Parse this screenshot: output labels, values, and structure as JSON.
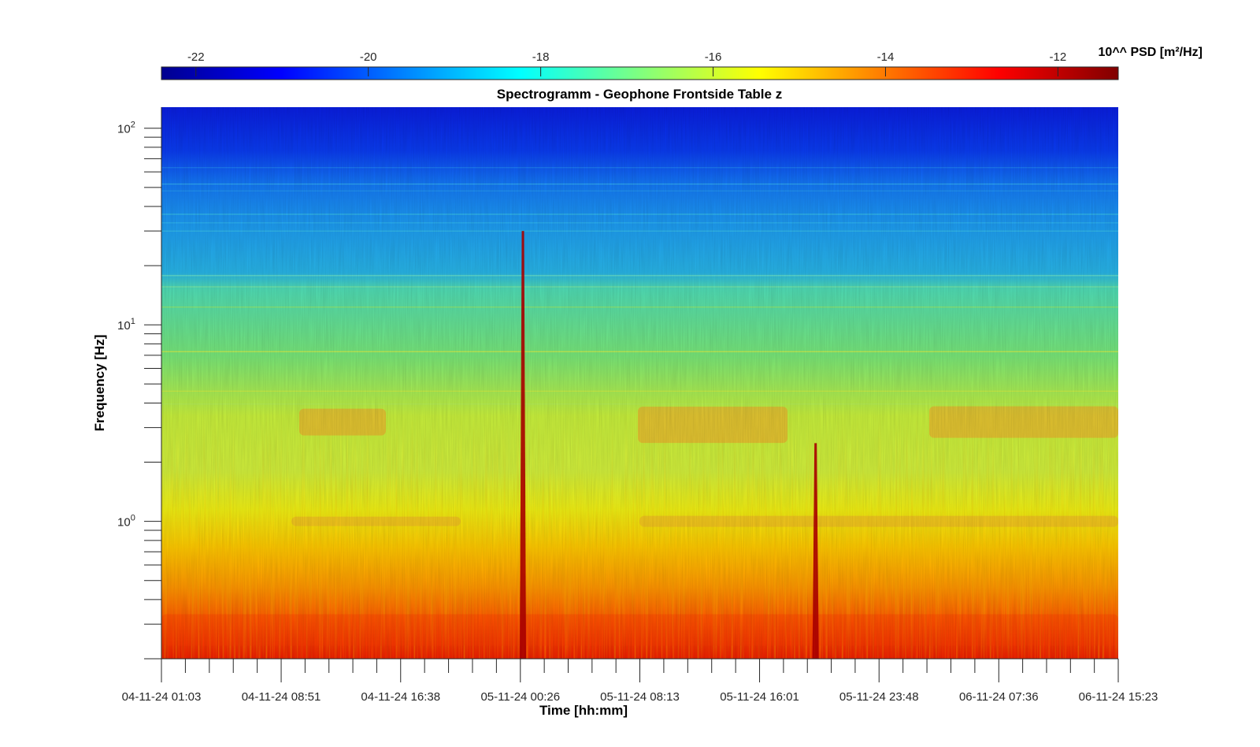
{
  "chart_data": {
    "type": "heatmap",
    "title": "Spectrogramm - Geophone Frontside Table z",
    "xlabel": "Time [hh:mm]",
    "ylabel": "Frequency [Hz]",
    "yscale": "log",
    "ylim": [
      0.2,
      128
    ],
    "xlim": [
      "04-11-24 01:03",
      "06-11-24 15:23"
    ],
    "x_ticks": [
      "04-11-24 01:03",
      "04-11-24 08:51",
      "04-11-24 16:38",
      "05-11-24 00:26",
      "05-11-24 08:13",
      "05-11-24 16:01",
      "05-11-24 23:48",
      "06-11-24 07:36",
      "06-11-24 15:23"
    ],
    "y_ticks": [
      {
        "base": "10",
        "exp": "0",
        "value": 1
      },
      {
        "base": "10",
        "exp": "1",
        "value": 10
      },
      {
        "base": "10",
        "exp": "2",
        "value": 100
      }
    ],
    "colorbar": {
      "label": "10^^ PSD [m²/Hz]",
      "location": "top",
      "range": [
        -22.4,
        -11.3
      ],
      "ticks": [
        "-22",
        "-20",
        "-18",
        "-16",
        "-14",
        "-12"
      ],
      "colormap": "jet"
    },
    "events": [
      {
        "time": "05-11-24 00:36",
        "description": "broadband transient, 0.2–30 Hz"
      },
      {
        "time": "05-11-24 19:40",
        "description": "broadband transient, 0.2–2.5 Hz"
      }
    ],
    "grid": false
  }
}
